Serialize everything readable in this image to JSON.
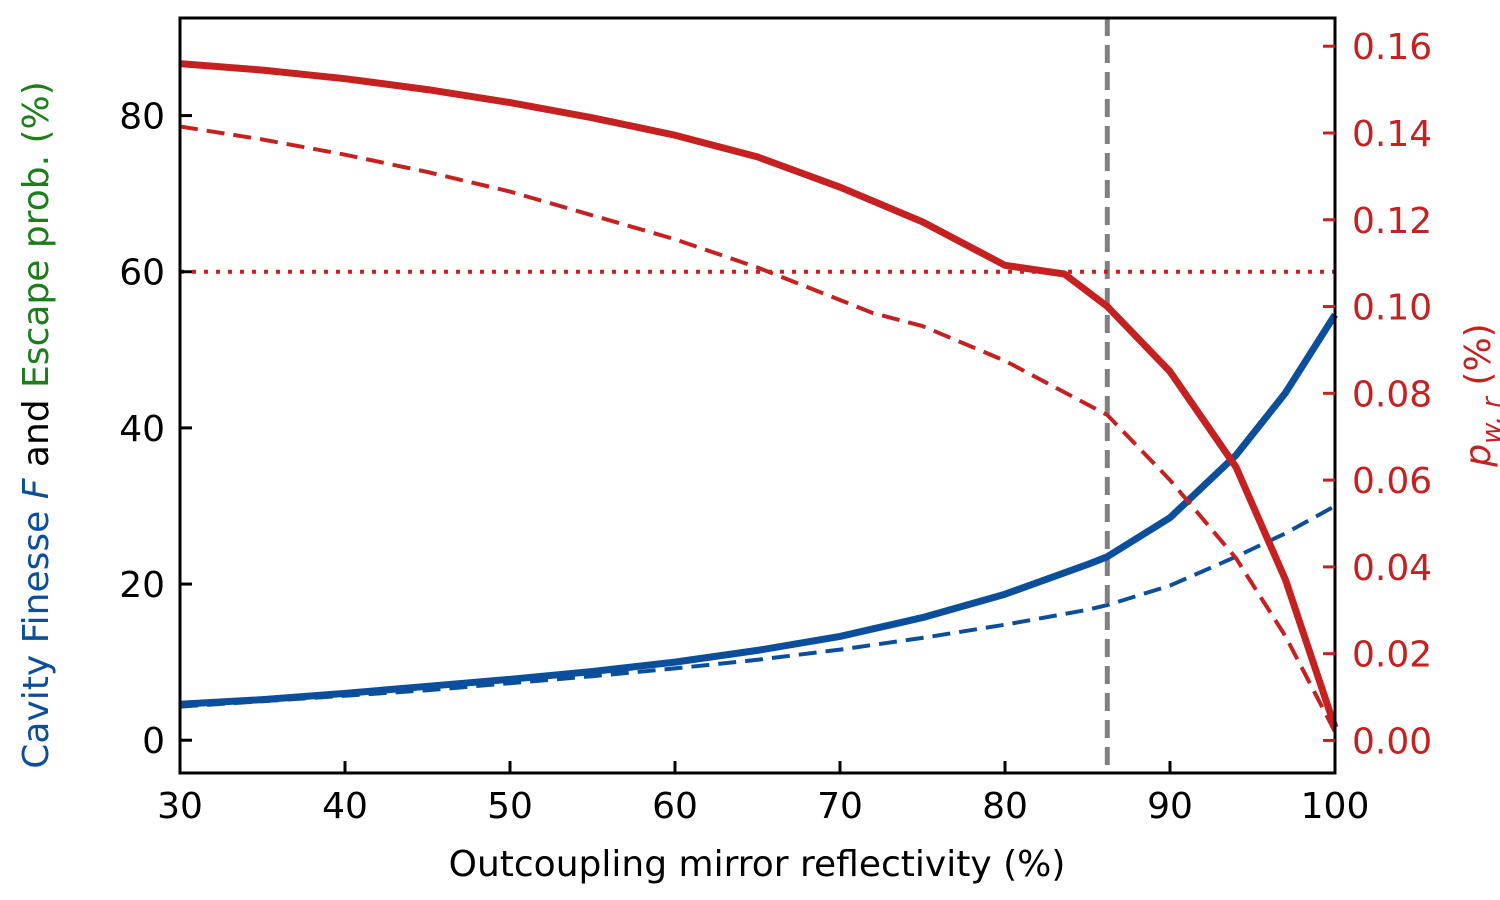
{
  "chart_data": {
    "type": "line",
    "xlabel": "Outcoupling mirror reflectivity (%)",
    "ylabel_left": {
      "parts": [
        {
          "text": "Cavity Finesse ",
          "color": "#0b4f9c",
          "italic": false
        },
        {
          "text": "F",
          "color": "#0b4f9c",
          "italic": true
        },
        {
          "text": " and ",
          "color": "#000000",
          "italic": false
        },
        {
          "text": "Escape prob. (%)",
          "color": "#1a7f1a",
          "italic": false
        }
      ]
    },
    "ylabel_right": {
      "symbol": "p",
      "subscript": "w, r",
      "suffix": " (%)",
      "color": "#c62121"
    },
    "xlim": [
      30,
      100
    ],
    "ylim_left": [
      -4.2,
      92.5
    ],
    "ylim_right": [
      -0.0075,
      0.1665
    ],
    "xticks": [
      "30",
      "40",
      "50",
      "60",
      "70",
      "80",
      "90",
      "100"
    ],
    "yticks_left": [
      "0",
      "20",
      "40",
      "60",
      "80"
    ],
    "yticks_right": [
      "0.00",
      "0.02",
      "0.04",
      "0.06",
      "0.08",
      "0.10",
      "0.12",
      "0.14",
      "0.16"
    ],
    "series": [
      {
        "axis": "left",
        "color": "#0b4f9c",
        "style": "solid",
        "width": 7,
        "x": [
          30,
          35,
          40,
          45,
          50,
          55,
          60,
          65,
          70,
          75,
          80,
          85,
          86.2,
          90,
          94,
          97,
          100
        ],
        "y": [
          4.6,
          5.2,
          6.0,
          6.9,
          7.8,
          8.8,
          10.0,
          11.5,
          13.3,
          15.7,
          18.7,
          22.5,
          23.5,
          28.5,
          36.5,
          44.5,
          54.5
        ]
      },
      {
        "axis": "left",
        "color": "#0b4f9c",
        "style": "dashed",
        "width": 4,
        "x": [
          30,
          35,
          40,
          45,
          50,
          55,
          60,
          65,
          70,
          75,
          80,
          85,
          86.2,
          90,
          94,
          97,
          100
        ],
        "y": [
          4.3,
          5.0,
          5.7,
          6.4,
          7.3,
          8.2,
          9.2,
          10.3,
          11.6,
          13.1,
          14.8,
          16.7,
          17.3,
          19.8,
          23.5,
          26.5,
          30.0
        ]
      },
      {
        "axis": "right",
        "color": "#c62121",
        "style": "solid",
        "width": 7,
        "x": [
          30,
          35,
          40,
          45,
          50,
          55,
          60,
          65,
          70,
          75,
          80,
          83.6,
          86.2,
          90,
          94,
          97,
          100
        ],
        "y": [
          0.156,
          0.1545,
          0.1525,
          0.15,
          0.147,
          0.1435,
          0.1395,
          0.1345,
          0.1275,
          0.1195,
          0.1095,
          0.1075,
          0.1,
          0.085,
          0.063,
          0.037,
          0.003
        ]
      },
      {
        "axis": "right",
        "color": "#c62121",
        "style": "dashed",
        "width": 4,
        "x": [
          30,
          35,
          40,
          45,
          50,
          55,
          60,
          65,
          70,
          72,
          75,
          80,
          86.2,
          90,
          94,
          97,
          100
        ],
        "y": [
          0.1415,
          0.1385,
          0.135,
          0.131,
          0.1265,
          0.121,
          0.1155,
          0.109,
          0.1015,
          0.0985,
          0.0955,
          0.0875,
          0.075,
          0.06,
          0.042,
          0.024,
          0.002
        ]
      },
      {
        "axis": "left",
        "color": "#c62121",
        "style": "dotted",
        "width": 4,
        "x": [
          30,
          100
        ],
        "y": [
          60,
          60
        ]
      }
    ],
    "vlines": [
      {
        "x": 86.2,
        "color": "#808080",
        "style": "dashed",
        "width": 5
      }
    ],
    "grid": false,
    "legend": "none"
  }
}
